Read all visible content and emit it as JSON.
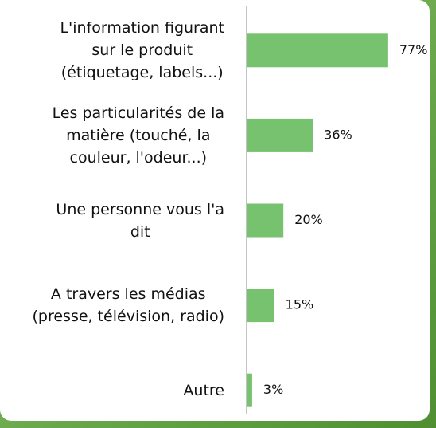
{
  "chart_data": {
    "type": "hbar",
    "categories": [
      "L'information figurant\nsur le produit\n(étiquetage, labels...)",
      "Les particularités de la\nmatière (touché, la\ncouleur, l'odeur...)",
      "Une personne vous l'a\ndit",
      "A travers les médias\n(presse, télévision, radio)",
      "Autre"
    ],
    "values": [
      77,
      36,
      20,
      15,
      3
    ],
    "value_labels": [
      "77%",
      "36%",
      "20%",
      "15%",
      "3%"
    ],
    "color": "#77c26e"
  }
}
